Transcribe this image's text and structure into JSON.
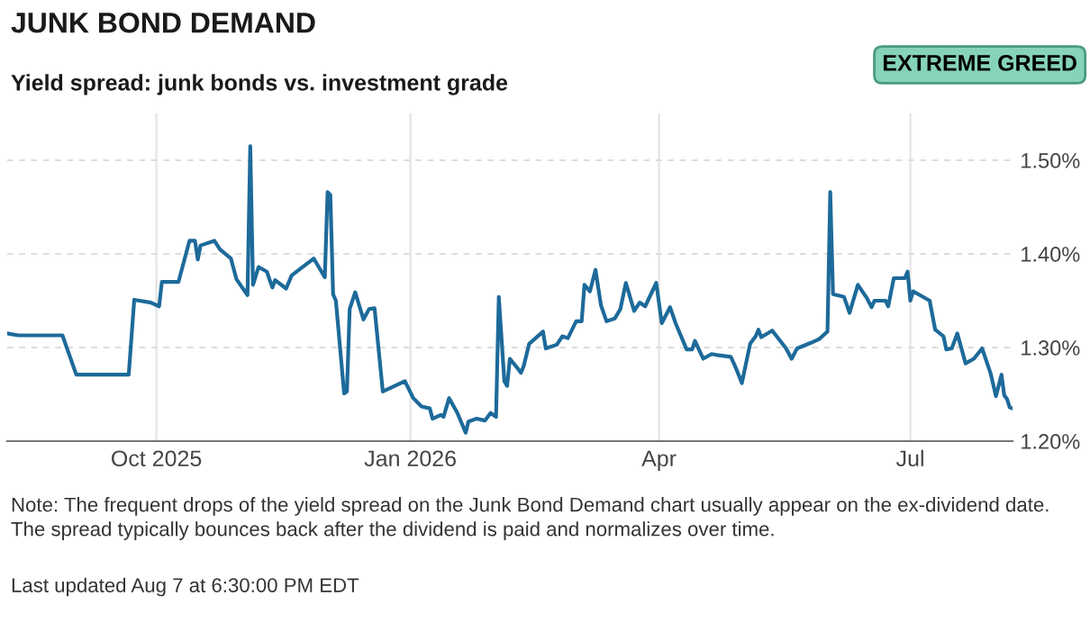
{
  "chart_data": {
    "type": "line",
    "title": "JUNK BOND DEMAND",
    "subtitle": "Yield spread: junk bonds vs. investment grade",
    "annotations": [
      "EXTREME GREED",
      "Note: The frequent drops of the yield spread on the Junk Bond Demand chart usually appear on the ex-dividend date.\nThe spread typically bounces back after the dividend is paid and normalizes over time.",
      "Last updated Aug 7 at 6:30:00 PM EDT"
    ],
    "x": [
      "2025-08-08",
      "2025-08-12",
      "2025-08-28",
      "2025-09-02",
      "2025-09-21",
      "2025-09-23",
      "2025-09-29",
      "2025-10-02",
      "2025-10-03",
      "2025-10-09",
      "2025-10-13",
      "2025-10-15",
      "2025-10-16",
      "2025-10-17",
      "2025-10-22",
      "2025-10-24",
      "2025-10-28",
      "2025-10-30",
      "2025-11-03",
      "2025-11-04",
      "2025-11-05",
      "2025-11-07",
      "2025-11-10",
      "2025-11-12",
      "2025-11-13",
      "2025-11-17",
      "2025-11-19",
      "2025-11-27",
      "2025-12-01",
      "2025-12-02",
      "2025-12-03",
      "2025-12-04",
      "2025-12-05",
      "2025-12-08",
      "2025-12-09",
      "2025-12-10",
      "2025-12-12",
      "2025-12-15",
      "2025-12-17",
      "2025-12-19",
      "2025-12-22",
      "2025-12-30",
      "2026-01-02",
      "2026-01-05",
      "2026-01-08",
      "2026-01-09",
      "2026-01-12",
      "2026-01-13",
      "2026-01-15",
      "2026-01-18",
      "2026-01-21",
      "2026-01-22",
      "2026-01-25",
      "2026-01-28",
      "2026-01-30",
      "2026-02-01",
      "2026-02-02",
      "2026-02-04",
      "2026-02-05",
      "2026-02-06",
      "2026-02-09",
      "2026-02-10",
      "2026-02-11",
      "2026-02-13",
      "2026-02-18",
      "2026-02-19",
      "2026-02-23",
      "2026-02-25",
      "2026-02-27",
      "2026-03-02",
      "2026-03-04",
      "2026-03-05",
      "2026-03-07",
      "2026-03-09",
      "2026-03-11",
      "2026-03-13",
      "2026-03-16",
      "2026-03-18",
      "2026-03-20",
      "2026-03-23",
      "2026-03-25",
      "2026-03-27",
      "2026-03-31",
      "2026-04-02",
      "2026-04-05",
      "2026-04-07",
      "2026-04-11",
      "2026-04-13",
      "2026-04-14",
      "2026-04-17",
      "2026-04-20",
      "2026-04-22",
      "2026-04-27",
      "2026-04-29",
      "2026-05-01",
      "2026-05-04",
      "2026-05-06",
      "2026-05-07",
      "2026-05-08",
      "2026-05-12",
      "2026-05-17",
      "2026-05-19",
      "2026-05-21",
      "2026-05-26",
      "2026-05-29",
      "2026-06-01",
      "2026-06-02",
      "2026-06-03",
      "2026-06-07",
      "2026-06-09",
      "2026-06-12",
      "2026-06-15",
      "2026-06-17",
      "2026-06-18",
      "2026-06-22",
      "2026-06-23",
      "2026-06-25",
      "2026-06-29",
      "2026-06-30",
      "2026-07-01",
      "2026-07-02",
      "2026-07-08",
      "2026-07-10",
      "2026-07-13",
      "2026-07-14",
      "2026-07-16",
      "2026-07-18",
      "2026-07-21",
      "2026-07-24",
      "2026-07-27",
      "2026-07-30",
      "2026-08-01",
      "2026-08-03",
      "2026-08-04",
      "2026-08-05",
      "2026-08-06",
      "2026-08-07"
    ],
    "series": [
      {
        "color": "#1d6a9a",
        "values": [
          1.315,
          1.313,
          1.313,
          1.271,
          1.271,
          1.351,
          1.348,
          1.344,
          1.37,
          1.37,
          1.414,
          1.414,
          1.394,
          1.409,
          1.414,
          1.405,
          1.395,
          1.373,
          1.356,
          1.515,
          1.367,
          1.386,
          1.381,
          1.364,
          1.372,
          1.363,
          1.377,
          1.395,
          1.375,
          1.466,
          1.463,
          1.357,
          1.35,
          1.251,
          1.253,
          1.341,
          1.359,
          1.33,
          1.341,
          1.342,
          1.253,
          1.264,
          1.246,
          1.237,
          1.235,
          1.224,
          1.228,
          1.226,
          1.246,
          1.23,
          1.209,
          1.221,
          1.224,
          1.222,
          1.23,
          1.226,
          1.354,
          1.264,
          1.259,
          1.288,
          1.277,
          1.273,
          1.28,
          1.304,
          1.317,
          1.299,
          1.303,
          1.312,
          1.31,
          1.328,
          1.328,
          1.367,
          1.36,
          1.383,
          1.345,
          1.328,
          1.331,
          1.341,
          1.369,
          1.339,
          1.348,
          1.344,
          1.369,
          1.326,
          1.343,
          1.326,
          1.298,
          1.298,
          1.307,
          1.288,
          1.293,
          1.292,
          1.29,
          1.277,
          1.262,
          1.304,
          1.312,
          1.319,
          1.311,
          1.318,
          1.299,
          1.288,
          1.299,
          1.305,
          1.309,
          1.317,
          1.466,
          1.357,
          1.354,
          1.337,
          1.367,
          1.354,
          1.343,
          1.35,
          1.35,
          1.344,
          1.374,
          1.374,
          1.381,
          1.35,
          1.36,
          1.35,
          1.319,
          1.312,
          1.298,
          1.299,
          1.315,
          1.283,
          1.288,
          1.299,
          1.273,
          1.248,
          1.271,
          1.249,
          1.245,
          1.236,
          1.235
        ]
      }
    ],
    "xlim": [
      "2025-08-08",
      "2026-08-07"
    ],
    "xticks": [
      {
        "value": "2025-10-01",
        "label": "Oct 2025"
      },
      {
        "value": "2026-01-01",
        "label": "Jan 2026"
      },
      {
        "value": "2026-04-01",
        "label": "Apr"
      },
      {
        "value": "2026-07-01",
        "label": "Jul"
      }
    ],
    "ylim": [
      1.2,
      1.55
    ],
    "yticks": [
      {
        "value": 1.2,
        "label": "1.20%"
      },
      {
        "value": 1.3,
        "label": "1.30%"
      },
      {
        "value": 1.4,
        "label": "1.40%"
      },
      {
        "value": 1.5,
        "label": "1.50%"
      }
    ],
    "grid": true,
    "marker": "none",
    "line_style": "solid"
  }
}
